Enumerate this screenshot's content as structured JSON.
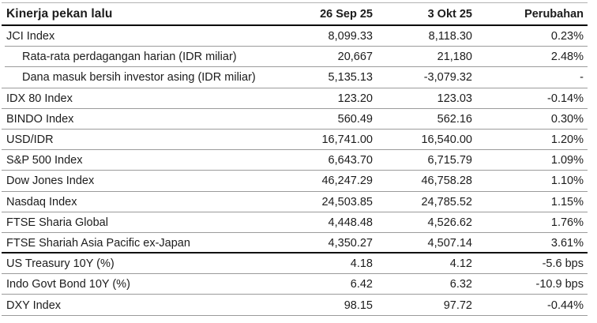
{
  "table": {
    "title": "Kinerja pekan lalu",
    "columns": [
      "26 Sep 25",
      "3 Okt 25",
      "Perubahan"
    ],
    "rows": [
      {
        "label": "JCI Index",
        "prev": "8,099.33",
        "curr": "8,118.30",
        "change": "0.23%",
        "indent": false,
        "divider": "inset"
      },
      {
        "label": "Rata-rata perdagangan harian (IDR miliar)",
        "prev": "20,667",
        "curr": "21,180",
        "change": "2.48%",
        "indent": true,
        "divider": "inset"
      },
      {
        "label": "Dana masuk bersih investor asing (IDR miliar)",
        "prev": "5,135.13",
        "curr": "-3,079.32",
        "change": "-",
        "indent": true,
        "divider": "normal"
      },
      {
        "label": "IDX 80 Index",
        "prev": "123.20",
        "curr": "123.03",
        "change": "-0.14%",
        "indent": false,
        "divider": "normal"
      },
      {
        "label": "BINDO Index",
        "prev": "560.49",
        "curr": "562.16",
        "change": "0.30%",
        "indent": false,
        "divider": "normal"
      },
      {
        "label": "USD/IDR",
        "prev": "16,741.00",
        "curr": "16,540.00",
        "change": "1.20%",
        "indent": false,
        "divider": "normal"
      },
      {
        "label": "S&P 500 Index",
        "prev": "6,643.70",
        "curr": "6,715.79",
        "change": "1.09%",
        "indent": false,
        "divider": "normal"
      },
      {
        "label": "Dow Jones Index",
        "prev": "46,247.29",
        "curr": "46,758.28",
        "change": "1.10%",
        "indent": false,
        "divider": "normal"
      },
      {
        "label": "Nasdaq Index",
        "prev": "24,503.85",
        "curr": "24,785.52",
        "change": "1.15%",
        "indent": false,
        "divider": "normal"
      },
      {
        "label": "FTSE Sharia Global",
        "prev": "4,448.48",
        "curr": "4,526.62",
        "change": "1.76%",
        "indent": false,
        "divider": "normal"
      },
      {
        "label": "FTSE Shariah Asia Pacific ex-Japan",
        "prev": "4,350.27",
        "curr": "4,507.14",
        "change": "3.61%",
        "indent": false,
        "divider": "strong"
      },
      {
        "label": "US Treasury 10Y (%)",
        "prev": "4.18",
        "curr": "4.12",
        "change": "-5.6 bps",
        "indent": false,
        "divider": "normal"
      },
      {
        "label": "Indo Govt Bond 10Y (%)",
        "prev": "6.42",
        "curr": "6.32",
        "change": "-10.9 bps",
        "indent": false,
        "divider": "normal"
      },
      {
        "label": "DXY Index",
        "prev": "98.15",
        "curr": "97.72",
        "change": "-0.44%",
        "indent": false,
        "divider": "normal"
      }
    ]
  },
  "colors": {
    "text": "#1c1c1c",
    "row_line": "#9b9b9b",
    "strong_line": "#111111",
    "top_line": "#b3b3b3"
  }
}
